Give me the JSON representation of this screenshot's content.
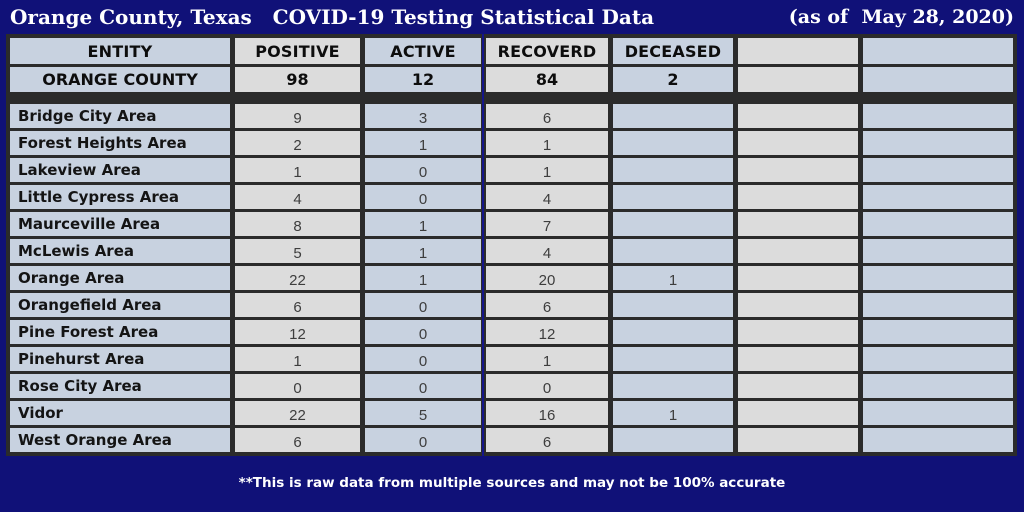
{
  "title": {
    "left": "Orange County, Texas   COVID-19 Testing Statistical Data",
    "right": "(as of  May 28, 2020)"
  },
  "chart_data": {
    "type": "table",
    "title": "Orange County, Texas COVID-19 Testing Statistical Data (as of May 28, 2020)",
    "columns": [
      "ENTITY",
      "POSITIVE",
      "ACTIVE",
      "RECOVERD",
      "DECEASED",
      "",
      ""
    ],
    "summary": {
      "entity": "ORANGE COUNTY",
      "values": [
        "98",
        "12",
        "84",
        "2",
        "",
        ""
      ]
    },
    "rows": [
      {
        "entity": "Bridge City Area",
        "values": [
          "9",
          "3",
          "6",
          "",
          "",
          ""
        ]
      },
      {
        "entity": "Forest Heights Area",
        "values": [
          "2",
          "1",
          "1",
          "",
          "",
          ""
        ]
      },
      {
        "entity": "Lakeview Area",
        "values": [
          "1",
          "0",
          "1",
          "",
          "",
          ""
        ]
      },
      {
        "entity": "Little Cypress Area",
        "values": [
          "4",
          "0",
          "4",
          "",
          "",
          ""
        ]
      },
      {
        "entity": "Maurceville Area",
        "values": [
          "8",
          "1",
          "7",
          "",
          "",
          ""
        ]
      },
      {
        "entity": "McLewis Area",
        "values": [
          "5",
          "1",
          "4",
          "",
          "",
          ""
        ]
      },
      {
        "entity": "Orange Area",
        "values": [
          "22",
          "1",
          "20",
          "1",
          "",
          ""
        ]
      },
      {
        "entity": "Orangefield Area",
        "values": [
          "6",
          "0",
          "6",
          "",
          "",
          ""
        ]
      },
      {
        "entity": "Pine Forest Area",
        "values": [
          "12",
          "0",
          "12",
          "",
          "",
          ""
        ]
      },
      {
        "entity": "Pinehurst Area",
        "values": [
          "1",
          "0",
          "1",
          "",
          "",
          ""
        ]
      },
      {
        "entity": "Rose City Area",
        "values": [
          "0",
          "0",
          "0",
          "",
          "",
          ""
        ]
      },
      {
        "entity": "Vidor",
        "values": [
          "22",
          "5",
          "16",
          "1",
          "",
          ""
        ]
      },
      {
        "entity": "West Orange Area",
        "values": [
          "6",
          "0",
          "6",
          "",
          "",
          ""
        ]
      }
    ]
  },
  "footer": {
    "note": "**This is raw data from multiple sources and may not be 100% accurate"
  },
  "colors": {
    "background": "#101178",
    "grid": "#2b2b2b",
    "cell_blue": "#c8d2e0",
    "cell_gray": "#dcdcdc",
    "title_text": "#ffffff",
    "number_text": "#3d3d3d"
  }
}
